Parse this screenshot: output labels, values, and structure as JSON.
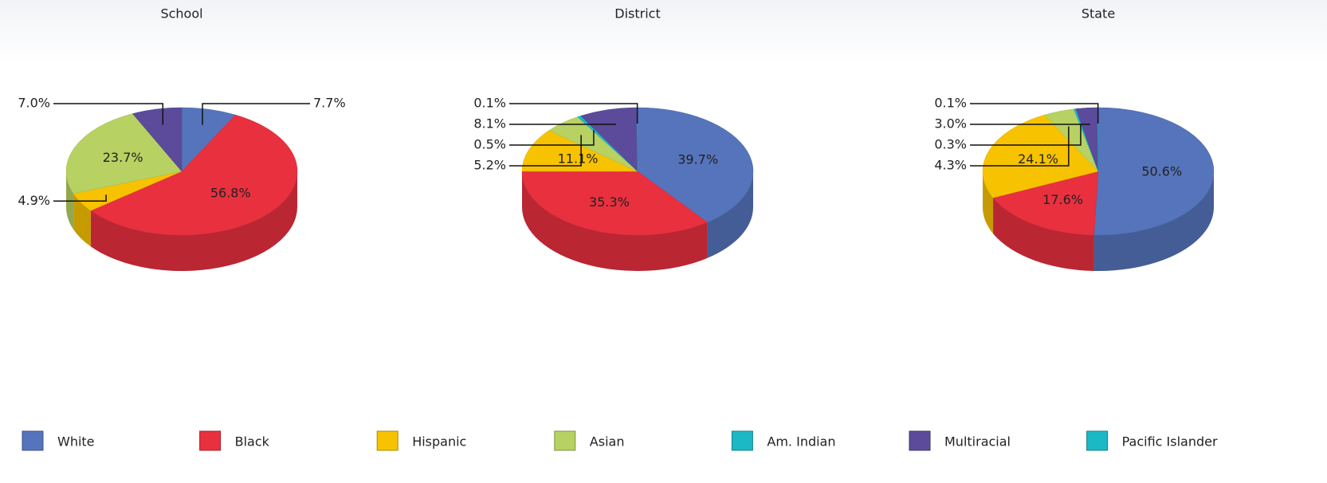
{
  "chart_data": [
    {
      "type": "pie",
      "title": "School",
      "categories": [
        "White",
        "Black",
        "Hispanic",
        "Asian",
        "Am. Indian",
        "Multiracial",
        "Pacific Islander"
      ],
      "colors": [
        "#5574bb",
        "#e8303f",
        "#f7c200",
        "#b7d162",
        "#1cb8c6",
        "#5b4b9a",
        "#1cb8c6"
      ],
      "values": [
        7.7,
        56.8,
        4.9,
        23.7,
        null,
        7.0,
        null
      ],
      "value_labels": [
        "7.7%",
        "56.8%",
        "4.9%",
        "23.7%",
        null,
        "7.0%",
        null
      ]
    },
    {
      "type": "pie",
      "title": "District",
      "categories": [
        "White",
        "Black",
        "Hispanic",
        "Asian",
        "Am. Indian",
        "Multiracial",
        "Pacific Islander"
      ],
      "colors": [
        "#5574bb",
        "#e8303f",
        "#f7c200",
        "#b7d162",
        "#1cb8c6",
        "#5b4b9a",
        "#1cb8c6"
      ],
      "values": [
        39.7,
        35.3,
        11.1,
        5.2,
        0.5,
        8.1,
        0.1
      ],
      "value_labels": [
        "39.7%",
        "35.3%",
        "11.1%",
        "5.2%",
        "0.5%",
        "8.1%",
        "0.1%"
      ]
    },
    {
      "type": "pie",
      "title": "State",
      "categories": [
        "White",
        "Black",
        "Hispanic",
        "Asian",
        "Am. Indian",
        "Multiracial",
        "Pacific Islander"
      ],
      "colors": [
        "#5574bb",
        "#e8303f",
        "#f7c200",
        "#b7d162",
        "#1cb8c6",
        "#5b4b9a",
        "#1cb8c6"
      ],
      "values": [
        50.6,
        17.6,
        24.1,
        4.3,
        0.3,
        3.0,
        0.1
      ],
      "value_labels": [
        "50.6%",
        "17.6%",
        "24.1%",
        "4.3%",
        "0.3%",
        "3.0%",
        "0.1%"
      ]
    }
  ]
}
